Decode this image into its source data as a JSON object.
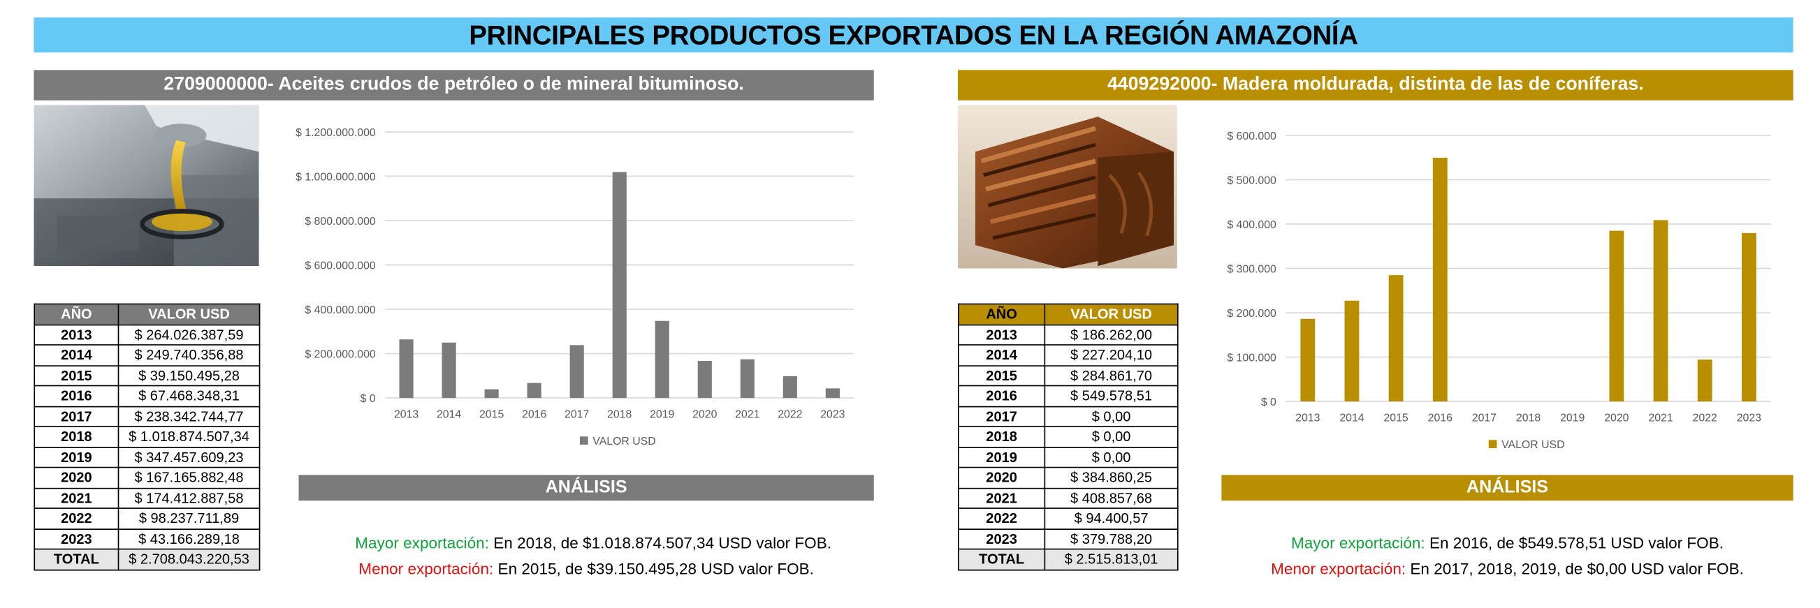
{
  "title": "PRINCIPALES PRODUCTOS EXPORTADOS EN LA REGIÓN AMAZONÍA",
  "table_headers": {
    "year": "AÑO",
    "value": "VALOR USD"
  },
  "panels": [
    {
      "product_title": "2709000000- Aceites crudos de petróleo o de mineral bituminoso.",
      "accent": "#7b7b7b",
      "photo_icon": "oil-pouring-photo",
      "rows": [
        {
          "year": "2013",
          "value": "$ 264.026.387,59"
        },
        {
          "year": "2014",
          "value": "$ 249.740.356,88"
        },
        {
          "year": "2015",
          "value": "$ 39.150.495,28"
        },
        {
          "year": "2016",
          "value": "$ 67.468.348,31"
        },
        {
          "year": "2017",
          "value": "$ 238.342.744,77"
        },
        {
          "year": "2018",
          "value": "$ 1.018.874.507,34"
        },
        {
          "year": "2019",
          "value": "$ 347.457.609,23"
        },
        {
          "year": "2020",
          "value": "$ 167.165.882,48"
        },
        {
          "year": "2021",
          "value": "$ 174.412.887,58"
        },
        {
          "year": "2022",
          "value": "$ 98.237.711,89"
        },
        {
          "year": "2023",
          "value": "$ 43.166.289,18"
        }
      ],
      "total_label": "TOTAL",
      "total_value": "$ 2.708.043.220,53",
      "analysis_title": "ANÁLISIS",
      "max_label": "Mayor exportación:",
      "max_text": " En 2018, de $1.018.874.507,34 USD valor FOB.",
      "min_label": "Menor exportación:",
      "min_text": " En 2015, de $39.150.495,28 USD valor FOB."
    },
    {
      "product_title": "4409292000- Madera moldurada, distinta de las de coníferas.",
      "accent": "#b98f00",
      "photo_icon": "wood-molding-photo",
      "rows": [
        {
          "year": "2013",
          "value": "$ 186.262,00"
        },
        {
          "year": "2014",
          "value": "$ 227.204,10"
        },
        {
          "year": "2015",
          "value": "$ 284.861,70"
        },
        {
          "year": "2016",
          "value": "$ 549.578,51"
        },
        {
          "year": "2017",
          "value": "$ 0,00"
        },
        {
          "year": "2018",
          "value": "$ 0,00"
        },
        {
          "year": "2019",
          "value": "$ 0,00"
        },
        {
          "year": "2020",
          "value": "$ 384.860,25"
        },
        {
          "year": "2021",
          "value": "$ 408.857,68"
        },
        {
          "year": "2022",
          "value": "$ 94.400,57"
        },
        {
          "year": "2023",
          "value": "$ 379.788,20"
        }
      ],
      "total_label": "TOTAL",
      "total_value": "$ 2.515.813,01",
      "analysis_title": "ANÁLISIS",
      "max_label": "Mayor exportación:",
      "max_text": " En 2016, de $549.578,51 USD valor FOB.",
      "min_label": "Menor exportación:",
      "min_text": " En 2017, 2018, 2019, de $0,00 USD valor FOB."
    }
  ],
  "chart_data": [
    {
      "type": "bar",
      "categories": [
        "2013",
        "2014",
        "2015",
        "2016",
        "2017",
        "2018",
        "2019",
        "2020",
        "2021",
        "2022",
        "2023"
      ],
      "series": [
        {
          "name": "VALOR USD",
          "color": "#7b7b7b",
          "values": [
            264026387.59,
            249740356.88,
            39150495.28,
            67468348.31,
            238342744.77,
            1018874507.34,
            347457609.23,
            167165882.48,
            174412887.58,
            98237711.89,
            43166289.18
          ]
        }
      ],
      "ylim": [
        0,
        1200000000
      ],
      "yticks": [
        0,
        200000000,
        400000000,
        600000000,
        800000000,
        1000000000,
        1200000000
      ],
      "ytick_labels": [
        "$ 0",
        "$ 200.000.000",
        "$ 400.000.000",
        "$ 600.000.000",
        "$ 800.000.000",
        "$ 1.000.000.000",
        "$ 1.200.000.000"
      ],
      "grid": true,
      "legend": "bottom"
    },
    {
      "type": "bar",
      "categories": [
        "2013",
        "2014",
        "2015",
        "2016",
        "2017",
        "2018",
        "2019",
        "2020",
        "2021",
        "2022",
        "2023"
      ],
      "series": [
        {
          "name": "VALOR USD",
          "color": "#b98f00",
          "values": [
            186262.0,
            227204.1,
            284861.7,
            549578.51,
            0,
            0,
            0,
            384860.25,
            408857.68,
            94400.57,
            379788.2
          ]
        }
      ],
      "ylim": [
        0,
        600000
      ],
      "yticks": [
        0,
        100000,
        200000,
        300000,
        400000,
        500000,
        600000
      ],
      "ytick_labels": [
        "$ 0",
        "$ 100.000",
        "$ 200.000",
        "$ 300.000",
        "$ 400.000",
        "$ 500.000",
        "$ 600.000"
      ],
      "grid": true,
      "legend": "bottom"
    }
  ]
}
